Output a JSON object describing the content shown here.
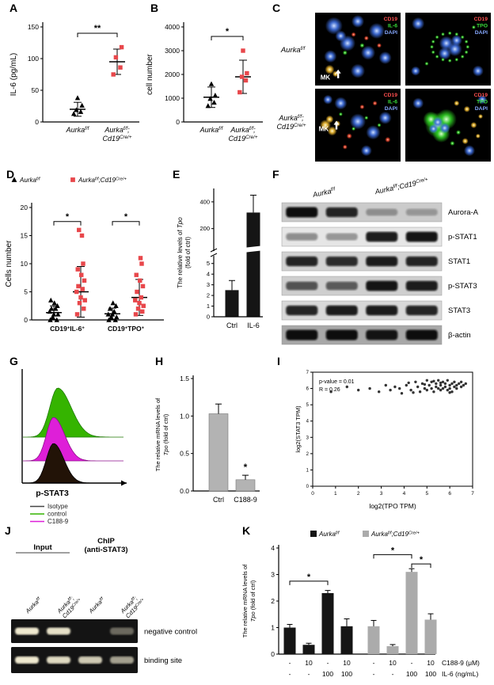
{
  "figure": {
    "bg": "#ffffff"
  },
  "genotypes": {
    "wt": "Aurka^{f/f}",
    "ko": "Aurka^{f/f};Cd19^{Cre/+}"
  },
  "panels": {
    "A": {
      "label": "A",
      "ylabel": "IL-6 (pg/mL)",
      "ylim": [
        0,
        150
      ],
      "yticks": [
        0,
        50,
        100,
        150
      ],
      "sig": [
        {
          "from": 0,
          "to": 1,
          "label": "**",
          "y": 140
        }
      ],
      "groups": [
        {
          "name_lines": [
            "Aurka^{f/f}"
          ],
          "marker": "triangle",
          "color": "#000000",
          "mean": 20,
          "sd": 11,
          "points": [
            13,
            16,
            19,
            26,
            38
          ]
        },
        {
          "name_lines": [
            "Aurka^{f/f};",
            "Cd19^{Cre/+}"
          ],
          "marker": "square",
          "color": "#e8474b",
          "mean": 95,
          "sd": 20,
          "points": [
            75,
            86,
            102,
            118
          ]
        }
      ]
    },
    "B": {
      "label": "B",
      "ylabel": "cell number",
      "ylim": [
        0,
        4000
      ],
      "yticks": [
        0,
        1000,
        2000,
        3000,
        4000
      ],
      "sig": [
        {
          "from": 0,
          "to": 1,
          "label": "*",
          "y": 3600
        }
      ],
      "groups": [
        {
          "name_lines": [
            "Aurka^{f/f}"
          ],
          "marker": "triangle",
          "color": "#000000",
          "mean": 1040,
          "sd": 430,
          "points": [
            680,
            820,
            980,
            1120,
            1600
          ]
        },
        {
          "name_lines": [
            "Aurka^{f/f};",
            "Cd19^{Cre/+}"
          ],
          "marker": "square",
          "color": "#e8474b",
          "mean": 1900,
          "sd": 700,
          "points": [
            1250,
            1750,
            1900,
            2050,
            3000
          ]
        }
      ]
    },
    "C": {
      "label": "C",
      "row_labels": [
        [
          "Aurka^{f/f}"
        ],
        [
          "Aurka^{f/f};",
          "Cd19^{Cre/+}"
        ]
      ],
      "tags_il6": [
        {
          "t": "CD19",
          "c": "#ff5050"
        },
        {
          "t": "IL-6",
          "c": "#3ae03a"
        },
        {
          "t": "DAPI",
          "c": "#86a8ff"
        }
      ],
      "tags_tpo": [
        {
          "t": "CD19",
          "c": "#ff5050"
        },
        {
          "t": "TPO",
          "c": "#3ae03a"
        },
        {
          "t": "DAPI",
          "c": "#86a8ff"
        }
      ],
      "mk": "MK"
    },
    "D": {
      "label": "D",
      "legend": [
        {
          "marker": "triangle",
          "color": "#000000",
          "text": "Aurka^{f/f}"
        },
        {
          "marker": "square",
          "color": "#e8474b",
          "text": "Aurka^{f/f};Cd19^{Cre/+}"
        }
      ],
      "ylabel": "Cells number",
      "ylim": [
        0,
        20
      ],
      "yticks": [
        0,
        5,
        10,
        15,
        20
      ],
      "categories": [
        "CD19^{+}IL-6^{+}",
        "CD19^{+}TPO^{+}"
      ],
      "sig": [
        {
          "from": 0,
          "to": 1,
          "label": "*",
          "y": 17.5
        },
        {
          "from": 2,
          "to": 3,
          "label": "*",
          "y": 17.5
        }
      ],
      "groups": [
        {
          "marker": "triangle",
          "color": "#000000",
          "mean": 1.3,
          "sd": 1.2,
          "points": [
            0,
            0,
            0.5,
            1,
            1,
            1.5,
            2,
            2,
            2.5,
            3,
            3.5
          ]
        },
        {
          "marker": "square",
          "color": "#e8474b",
          "mean": 5,
          "sd": 4.5,
          "points": [
            1,
            2,
            3,
            3.5,
            4,
            5,
            5.5,
            6,
            7,
            8,
            9,
            10,
            15,
            16
          ]
        },
        {
          "marker": "triangle",
          "color": "#000000",
          "mean": 1.1,
          "sd": 1.0,
          "points": [
            0,
            0,
            0.5,
            0.5,
            1,
            1,
            1.5,
            2,
            2.5,
            3
          ]
        },
        {
          "marker": "square",
          "color": "#e8474b",
          "mean": 4,
          "sd": 3.2,
          "points": [
            1,
            1.5,
            2,
            2.5,
            3,
            3.5,
            4,
            5,
            6,
            7,
            8,
            10,
            11
          ]
        }
      ]
    },
    "E": {
      "label": "E",
      "ylabel_lines": [
        "The relative levels of ~{Tpo}",
        "(fold of ctrl)"
      ],
      "lower": {
        "lim": [
          0,
          5.5
        ],
        "ticks": [
          0,
          1,
          2,
          3,
          4,
          5
        ]
      },
      "upper": {
        "lim": [
          50,
          500
        ],
        "ticks": [
          200,
          400
        ]
      },
      "categories": [
        "Ctrl",
        "IL-6"
      ],
      "values": [
        2.5,
        320
      ],
      "errors": [
        0.9,
        130
      ],
      "bar_color": "#151515"
    },
    "F": {
      "label": "F",
      "col_headers": [
        "Aurka^{f/f}",
        "Aurka^{f/f};Cd19^{Cre/+}"
      ],
      "rows": [
        {
          "name": "Aurora-A",
          "bg": "#cbcbcb",
          "bands": [
            1,
            0.85,
            0.15,
            0.1
          ]
        },
        {
          "name": "p-STAT1",
          "bg": "#e6e6e6",
          "bands": [
            0.25,
            0.2,
            0.9,
            0.95
          ]
        },
        {
          "name": "STAT1",
          "bg": "#d2d2d2",
          "bands": [
            0.85,
            0.8,
            0.9,
            0.85
          ]
        },
        {
          "name": "p-STAT3",
          "bg": "#cfcfcf",
          "bands": [
            0.55,
            0.5,
            0.95,
            0.9
          ]
        },
        {
          "name": "STAT3",
          "bg": "#d8d8d8",
          "bands": [
            0.85,
            0.9,
            0.9,
            0.85
          ]
        },
        {
          "name": "β-actin",
          "bg": "#a8a8a8",
          "bands": [
            1,
            1,
            0.95,
            1
          ]
        }
      ]
    },
    "G": {
      "label": "G",
      "xlabel": "p-STAT3",
      "ridges": [
        {
          "name": "control",
          "fill": "#35b400",
          "stroke": "#1e7a00",
          "peak": 0.34,
          "height": 62,
          "wl": 10,
          "wr": 17
        },
        {
          "name": "C188-9",
          "fill": "#de1fd8",
          "stroke": "#8f0d8c",
          "peak": 0.3,
          "height": 55,
          "wl": 9,
          "wr": 14
        },
        {
          "name": "Isotype",
          "fill": "#221307",
          "stroke": "#000000",
          "peak": 0.3,
          "height": 50,
          "wl": 9,
          "wr": 13
        }
      ],
      "legend": [
        {
          "name": "Isotype",
          "color": "#444444"
        },
        {
          "name": "control",
          "color": "#35b400"
        },
        {
          "name": "C188-9",
          "color": "#de1fd8"
        }
      ]
    },
    "H": {
      "label": "H",
      "ylabel_lines": [
        "The relative mRNA levels of",
        "~{Tpo} (fold of ctrl)"
      ],
      "ylim": [
        0,
        1.5
      ],
      "yticks": [
        "0.0",
        "0.5",
        "1.0",
        "1.5"
      ],
      "categories": [
        "Ctrl",
        "C188-9"
      ],
      "values": [
        1.03,
        0.15
      ],
      "errors": [
        0.13,
        0.06
      ],
      "bar_color": "#b3b3b3",
      "sig_star_index": 1,
      "sig_label": "*"
    },
    "I": {
      "label": "I",
      "annotation_lines": [
        "p-value = 0.01",
        "R = 0.26"
      ],
      "xlabel": "log2(TPO TPM)",
      "ylabel": "log2(STAT3 TPM)",
      "xlim": [
        0,
        7
      ],
      "xticks": [
        0,
        1,
        2,
        3,
        4,
        5,
        6,
        7
      ],
      "ylim": [
        0,
        7
      ],
      "yticks": [
        0,
        1,
        2,
        3,
        4,
        5,
        6,
        7
      ],
      "points": [
        [
          4.1,
          6.2
        ],
        [
          4.3,
          5.9
        ],
        [
          4.5,
          6.4
        ],
        [
          4.6,
          6.1
        ],
        [
          4.7,
          5.8
        ],
        [
          4.8,
          6.3
        ],
        [
          4.9,
          6.0
        ],
        [
          5.0,
          6.5
        ],
        [
          5.0,
          5.9
        ],
        [
          5.1,
          6.2
        ],
        [
          5.2,
          6.0
        ],
        [
          5.2,
          6.4
        ],
        [
          5.3,
          5.8
        ],
        [
          5.4,
          6.1
        ],
        [
          5.4,
          6.3
        ],
        [
          5.5,
          6.0
        ],
        [
          5.5,
          6.5
        ],
        [
          5.6,
          5.9
        ],
        [
          5.6,
          6.2
        ],
        [
          5.7,
          6.4
        ],
        [
          5.7,
          6.0
        ],
        [
          5.8,
          6.1
        ],
        [
          5.8,
          6.3
        ],
        [
          5.9,
          5.9
        ],
        [
          5.9,
          6.5
        ],
        [
          6.0,
          6.2
        ],
        [
          6.0,
          6.0
        ],
        [
          6.1,
          6.3
        ],
        [
          6.1,
          5.8
        ],
        [
          6.2,
          6.1
        ],
        [
          6.2,
          6.4
        ],
        [
          6.3,
          6.0
        ],
        [
          6.3,
          6.2
        ],
        [
          6.4,
          6.3
        ],
        [
          6.5,
          6.1
        ],
        [
          6.5,
          6.4
        ],
        [
          6.6,
          6.2
        ],
        [
          6.7,
          6.3
        ],
        [
          3.8,
          6.0
        ],
        [
          3.9,
          5.7
        ],
        [
          3.6,
          6.1
        ],
        [
          3.4,
          5.9
        ],
        [
          3.2,
          6.2
        ],
        [
          2.9,
          5.8
        ],
        [
          2.5,
          6.0
        ],
        [
          2.0,
          5.9
        ],
        [
          1.5,
          6.1
        ],
        [
          0.8,
          5.8
        ],
        [
          4.2,
          6.35
        ],
        [
          4.4,
          5.75
        ],
        [
          5.3,
          6.45
        ],
        [
          6.0,
          5.75
        ],
        [
          4.9,
          6.25
        ],
        [
          5.6,
          6.35
        ]
      ]
    },
    "J": {
      "label": "J",
      "group_input": "Input",
      "group_chip_l1": "ChIP",
      "group_chip_l2": "(anti-STAT3)",
      "lanes": [
        [
          "Aurka^{f/f}"
        ],
        [
          "Aurka^{f/f};",
          "Cd19^{Cre/+}"
        ],
        [
          "Aurka^{f/f}"
        ],
        [
          "Aurka^{f/f};",
          "Cd19^{Cre/+}"
        ]
      ],
      "rows": [
        {
          "name": "negative control",
          "bands": [
            1,
            0.95,
            0,
            0.2
          ]
        },
        {
          "name": "binding site",
          "bands": [
            1,
            0.9,
            0.8,
            0.55
          ]
        }
      ]
    },
    "K": {
      "label": "K",
      "legend": [
        {
          "color": "#151515",
          "text": "Aurka^{f/f}"
        },
        {
          "color": "#ababab",
          "text": "Aurka^{f/f};Cd19^{Cre/+}"
        }
      ],
      "ylabel_lines": [
        "The relative mRNA levels of",
        "~{Tpo} (fold of ctrl)"
      ],
      "ylim": [
        0,
        4
      ],
      "yticks": [
        0,
        1,
        2,
        3,
        4
      ],
      "series_colors": [
        "#151515",
        "#ababab"
      ],
      "values": [
        1.0,
        0.35,
        2.3,
        1.05,
        1.05,
        0.3,
        3.1,
        1.3
      ],
      "errors": [
        0.12,
        0.06,
        0.1,
        0.28,
        0.22,
        0.06,
        0.12,
        0.22
      ],
      "color_index": [
        0,
        0,
        0,
        0,
        1,
        1,
        1,
        1
      ],
      "row1": {
        "label": "C188-9 (μM)",
        "values": [
          "-",
          "10",
          "-",
          "10",
          "-",
          "10",
          "-",
          "10"
        ]
      },
      "row2": {
        "label": "IL-6 (ng/mL)",
        "values": [
          "-",
          "-",
          "100",
          "100",
          "-",
          "-",
          "100",
          "100"
        ]
      },
      "sig": [
        {
          "from": 0,
          "to": 2,
          "label": "*",
          "y": 2.75
        },
        {
          "from": 4,
          "to": 6,
          "label": "*",
          "y": 3.75
        },
        {
          "from": 6,
          "to": 7,
          "label": "*",
          "y": 3.4
        }
      ]
    }
  }
}
